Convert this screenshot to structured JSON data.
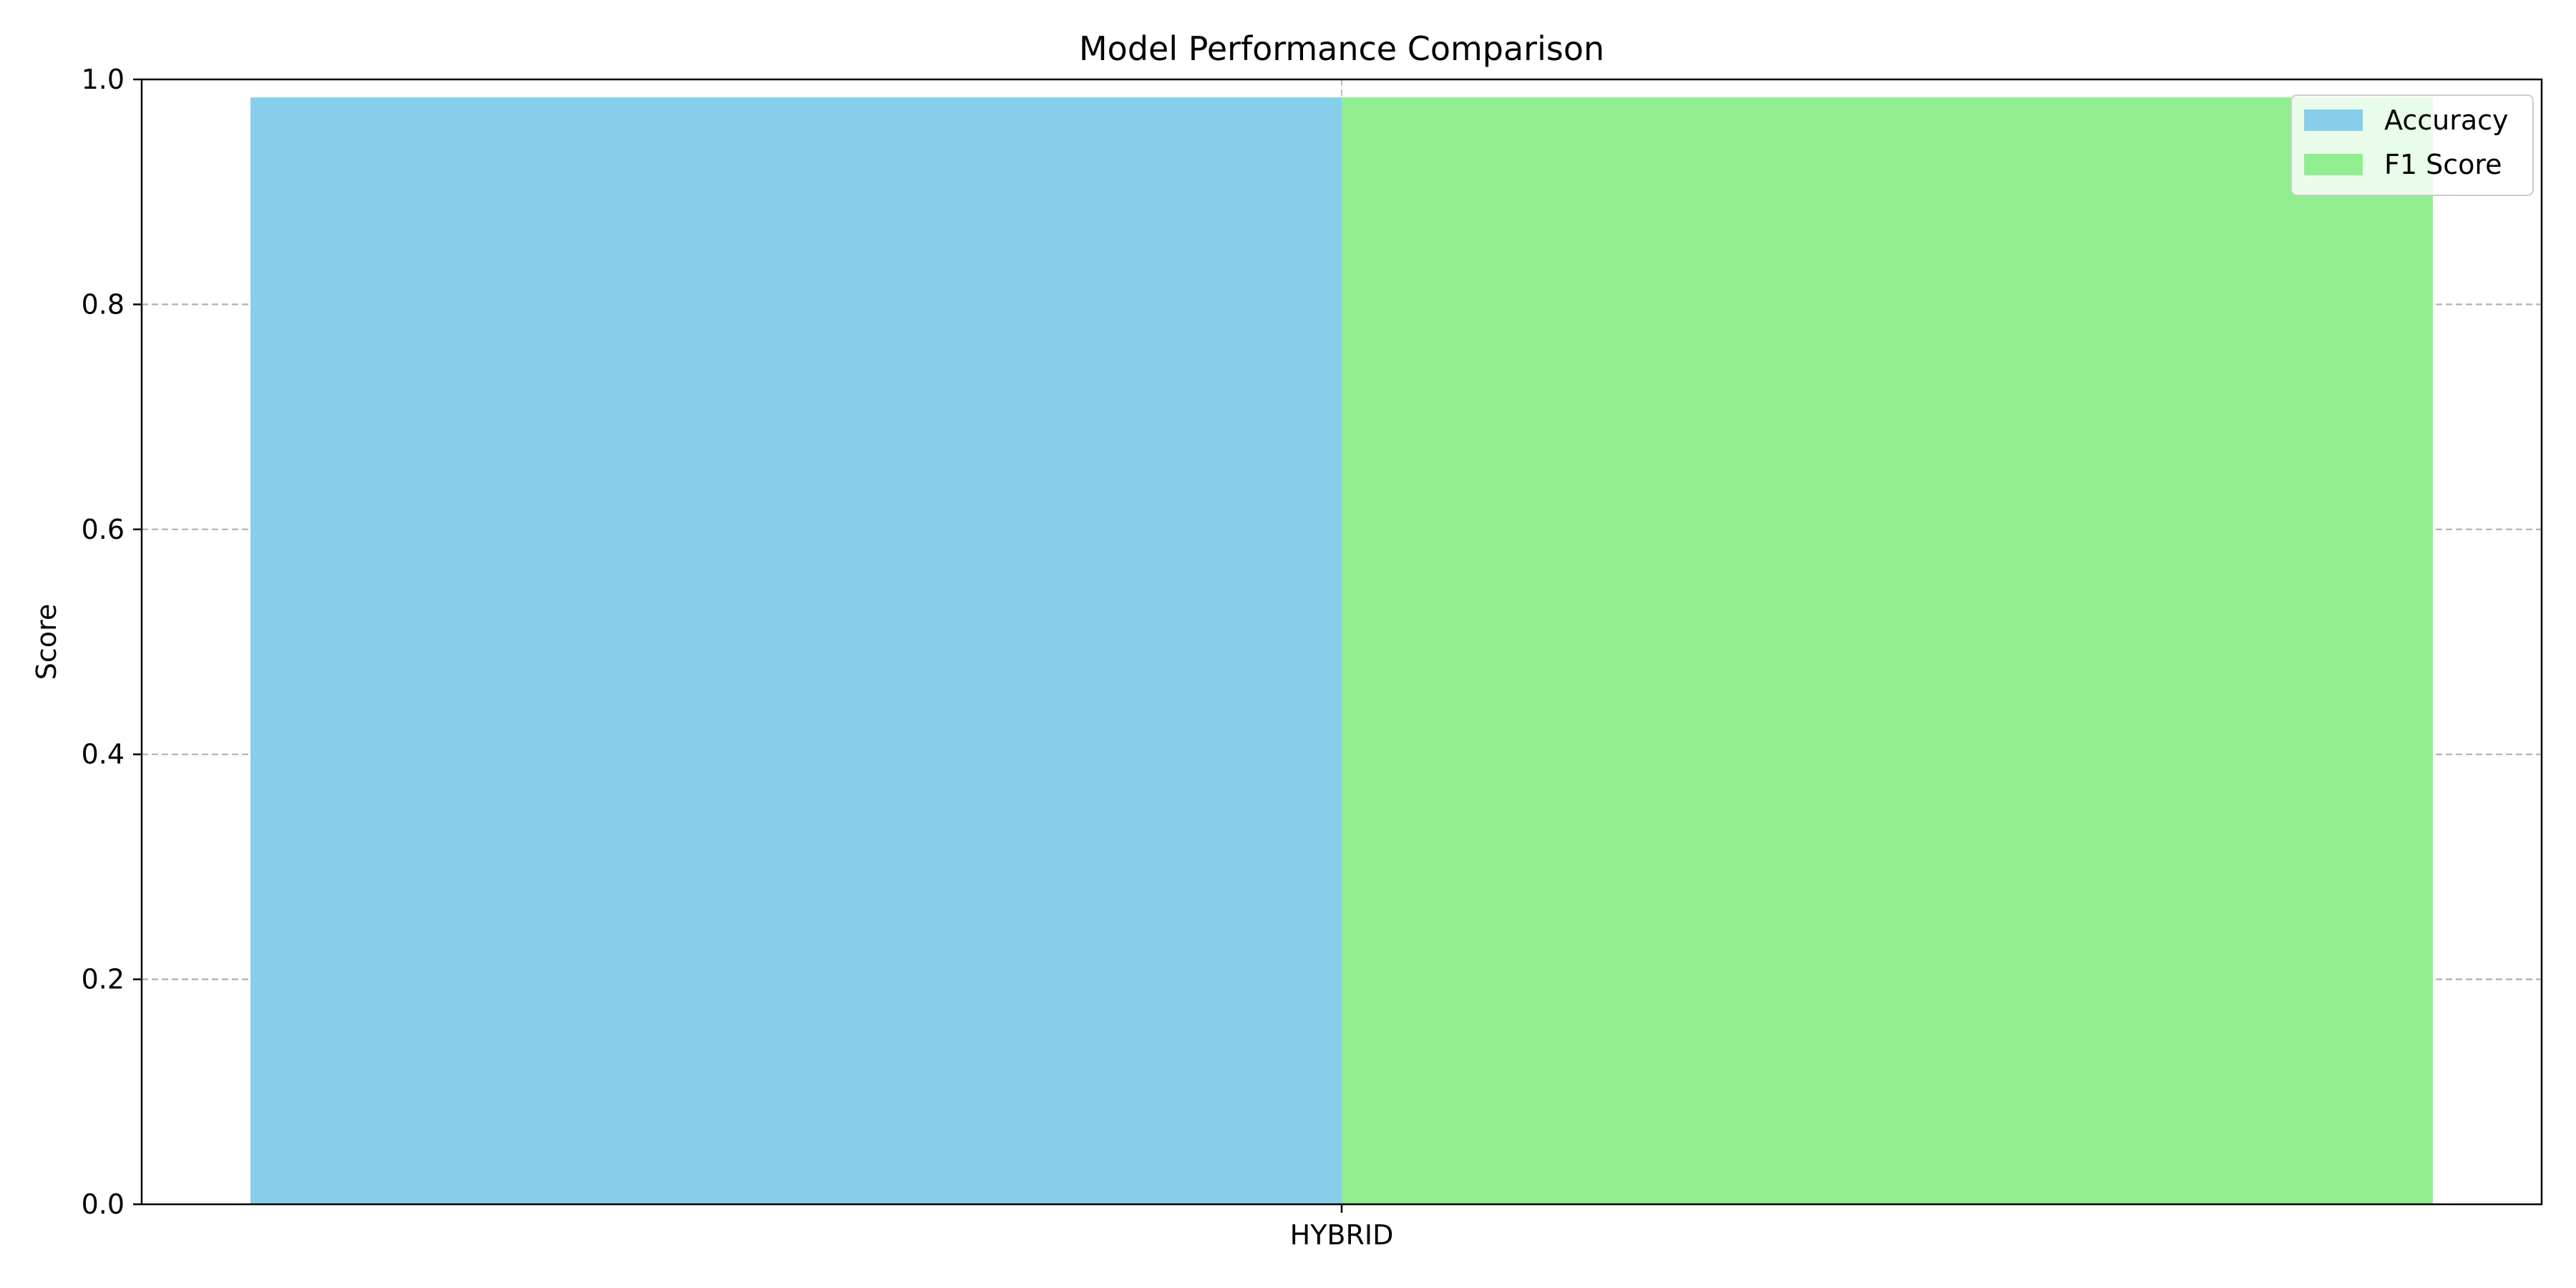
{
  "chart_data": {
    "type": "bar",
    "title": "Model Performance Comparison",
    "xlabel": "",
    "ylabel": "Score",
    "categories": [
      "HYBRID"
    ],
    "series": [
      {
        "name": "Accuracy",
        "values": [
          0.984
        ],
        "color": "#87CEEB"
      },
      {
        "name": "F1 Score",
        "values": [
          0.984
        ],
        "color": "#90EE90"
      }
    ],
    "ylim": [
      0,
      1.0
    ],
    "yticks": [
      "0.0",
      "0.2",
      "0.4",
      "0.6",
      "0.8",
      "1.0"
    ],
    "grid": true,
    "grid_color": "#b0b0b0",
    "legend_position": "upper-right"
  }
}
